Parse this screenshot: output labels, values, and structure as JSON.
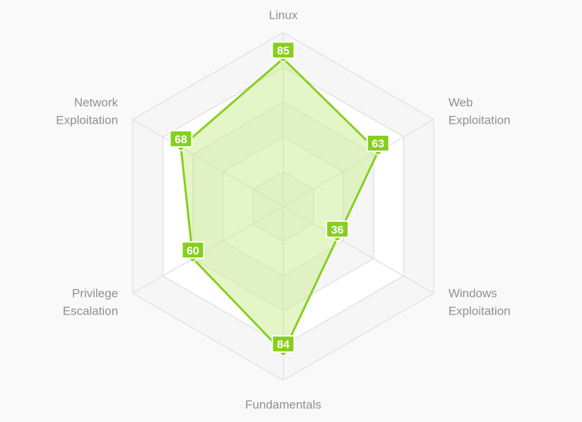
{
  "chart_data": {
    "type": "radar",
    "axes": [
      [
        "Linux"
      ],
      [
        "Web",
        "Exploitation"
      ],
      [
        "Windows",
        "Exploitation"
      ],
      [
        "Fundamentals"
      ],
      [
        "Privilege",
        "Escalation"
      ],
      [
        "Network",
        "Exploitation"
      ]
    ],
    "series": [
      {
        "values": [
          85,
          63,
          36,
          84,
          60,
          68
        ]
      }
    ],
    "range": [
      0,
      100
    ],
    "grid_levels": 5,
    "show_value_labels": true,
    "legend": "none"
  },
  "colors": {
    "series_line": "#86cf1e",
    "series_fill": "#c9ed8f",
    "label_background": "#86cf1e",
    "label_text": "#ffffff",
    "grid_line": "#e2e2e2",
    "band_light": "#ffffff",
    "band_dark": "#f6f6f6",
    "axis_label": "#8f8f8f",
    "background": "#f9f9f9"
  }
}
